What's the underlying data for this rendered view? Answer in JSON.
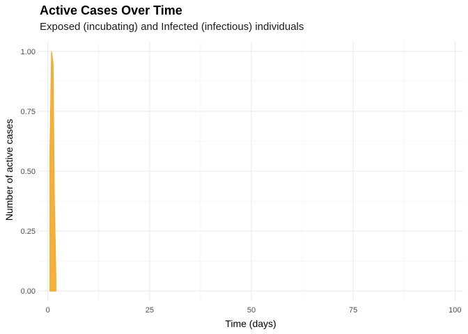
{
  "chart_data": {
    "type": "area",
    "title": "Active Cases Over Time",
    "subtitle": "Exposed (incubating) and Infected (infectious) individuals",
    "xlabel": "Time (days)",
    "ylabel": "Number of active cases",
    "xlim": [
      -2,
      102
    ],
    "ylim": [
      -0.04,
      1.04
    ],
    "x_ticks": [
      0,
      25,
      50,
      75,
      100
    ],
    "x_tick_labels": [
      "0",
      "25",
      "50",
      "75",
      "100"
    ],
    "y_ticks": [
      0,
      0.25,
      0.5,
      0.75,
      1
    ],
    "y_tick_labels": [
      "0.00",
      "0.25",
      "0.50",
      "0.75",
      "1.00"
    ],
    "grid": true,
    "series": [
      {
        "color": "#F5A623",
        "x": [
          0.5,
          0.9,
          1.3,
          1.6,
          2.0
        ],
        "y": [
          0.58,
          1.0,
          0.95,
          0.4,
          0.05
        ]
      }
    ]
  }
}
